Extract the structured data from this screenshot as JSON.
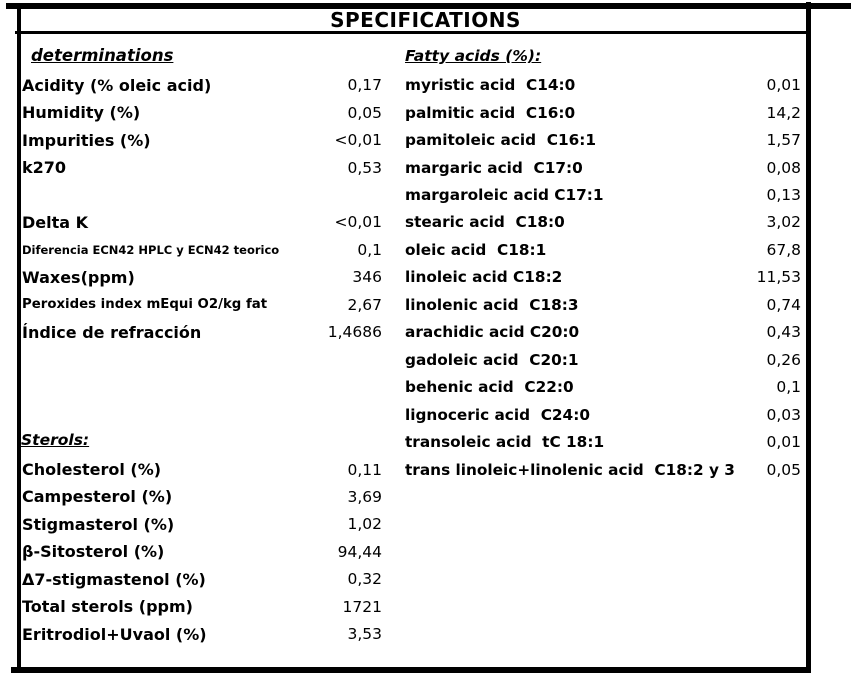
{
  "title": "SPECIFICATIONS",
  "determinations": {
    "header": "determinations",
    "rows": [
      {
        "label": "Acidity (% oleic acid)",
        "value": "0,17"
      },
      {
        "label": "Humidity (%)",
        "value": "0,05"
      },
      {
        "label": "Impurities (%)",
        "value": "<0,01"
      },
      {
        "label": "k270",
        "value": "0,53"
      },
      {
        "label": "Delta K",
        "value": "<0,01"
      },
      {
        "label": "Diferencia ECN42 HPLC y ECN42 teorico",
        "value": "0,1",
        "size": "xs"
      },
      {
        "label": "Waxes(ppm)",
        "value": "346"
      },
      {
        "label": "Peroxides index mEqui O2/kg fat",
        "value": "2,67",
        "size": "sm"
      },
      {
        "label": "Índice de refracción",
        "value": "1,4686"
      }
    ]
  },
  "sterols": {
    "header": "Sterols:",
    "rows": [
      {
        "label": "Cholesterol (%)",
        "value": "0,11"
      },
      {
        "label": "Campesterol (%)",
        "value": "3,69"
      },
      {
        "label": "Stigmasterol (%)",
        "value": "1,02"
      },
      {
        "label": "β-Sitosterol (%)",
        "value": "94,44"
      },
      {
        "label": "Δ7-stigmastenol (%)",
        "value": "0,32"
      },
      {
        "label": "Total sterols (ppm)",
        "value": "1721"
      },
      {
        "label": "Eritrodiol+Uvaol (%)",
        "value": "3,53"
      }
    ]
  },
  "fatty_acids": {
    "header": "Fatty acids (%):",
    "rows": [
      {
        "label": "myristic acid  C14:0",
        "value": "0,01"
      },
      {
        "label": "palmitic acid  C16:0",
        "value": "14,2"
      },
      {
        "label": "pamitoleic acid  C16:1",
        "value": "1,57"
      },
      {
        "label": "margaric acid  C17:0",
        "value": "0,08"
      },
      {
        "label": "margaroleic acid C17:1",
        "value": "0,13"
      },
      {
        "label": "stearic acid  C18:0",
        "value": "3,02"
      },
      {
        "label": "oleic acid  C18:1",
        "value": "67,8"
      },
      {
        "label": "linoleic acid C18:2",
        "value": "11,53"
      },
      {
        "label": "linolenic acid  C18:3",
        "value": "0,74"
      },
      {
        "label": "arachidic acid C20:0",
        "value": "0,43"
      },
      {
        "label": "gadoleic acid  C20:1",
        "value": "0,26"
      },
      {
        "label": "behenic acid  C22:0",
        "value": "0,1"
      },
      {
        "label": "lignoceric acid  C24:0",
        "value": "0,03"
      },
      {
        "label": "transoleic acid  tC 18:1",
        "value": "0,01"
      },
      {
        "label": "trans linoleic+linolenic acid  C18:2 y 3",
        "value": "0,05",
        "size": "sm"
      }
    ]
  }
}
